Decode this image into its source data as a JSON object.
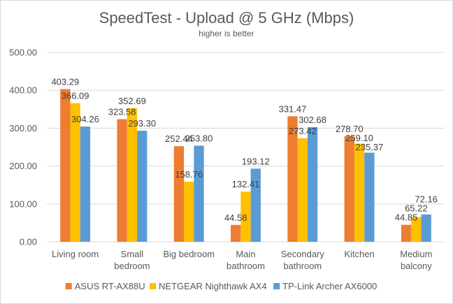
{
  "chart_data": {
    "type": "bar",
    "title": "SpeedTest - Upload @ 5 GHz (Mbps)",
    "subtitle": "higher is better",
    "xlabel": "",
    "ylabel": "",
    "ylim": [
      0,
      500
    ],
    "yticks": [
      "0.00",
      "100.00",
      "200.00",
      "300.00",
      "400.00",
      "500.00"
    ],
    "grid": true,
    "legend_position": "bottom",
    "categories": [
      [
        "Living room"
      ],
      [
        "Small",
        "bedroom"
      ],
      [
        "Big bedroom"
      ],
      [
        "Main",
        "bathroom"
      ],
      [
        "Secondary",
        "bathroom"
      ],
      [
        "Kitchen"
      ],
      [
        "Medium",
        "balcony"
      ]
    ],
    "series": [
      {
        "name": "ASUS RT-AX88U",
        "color": "#ED7D31",
        "values": [
          403.29,
          323.58,
          252.44,
          44.58,
          331.47,
          278.7,
          44.85
        ],
        "labels": [
          "403.29",
          "323.58",
          "252.44",
          "44.58",
          "331.47",
          "278.70",
          "44.85"
        ]
      },
      {
        "name": "NETGEAR Nighthawk AX4",
        "color": "#FFC000",
        "values": [
          366.09,
          352.69,
          158.76,
          132.41,
          273.42,
          259.1,
          65.22
        ],
        "labels": [
          "366.09",
          "352.69",
          "158.76",
          "132.41",
          "273.42",
          "259.10",
          "65.22"
        ]
      },
      {
        "name": "TP-Link Archer AX6000",
        "color": "#5B9BD5",
        "values": [
          304.26,
          293.3,
          253.8,
          193.12,
          302.68,
          235.37,
          72.16
        ],
        "labels": [
          "304.26",
          "293.30",
          "253.80",
          "193.12",
          "302.68",
          "235.37",
          "72.16"
        ]
      }
    ]
  }
}
